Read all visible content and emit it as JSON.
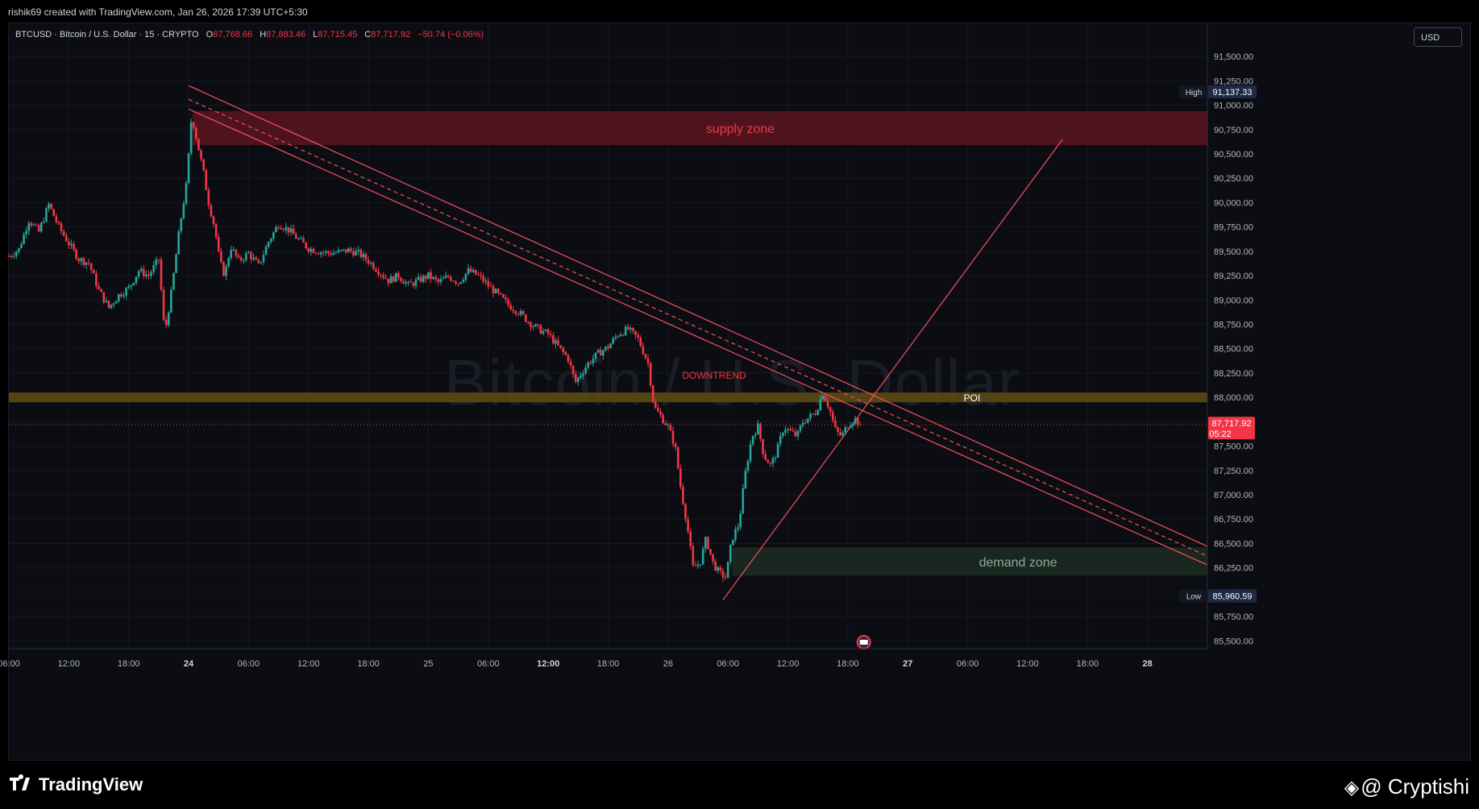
{
  "header": {
    "publish_line": "rishik69 created with TradingView.com, Jan 26, 2026 17:39 UTC+5:30"
  },
  "legend": {
    "symbol": "BTCUSD · Bitcoin / U.S. Dollar · 15 · CRYPTO",
    "open_label": "O",
    "open": "87,768.66",
    "high_label": "H",
    "high": "87,883.46",
    "low_label": "L",
    "low": "87,715.45",
    "close_label": "C",
    "close": "87,717.92",
    "change": "−50.74 (−0.06%)"
  },
  "currency": "USD",
  "watermark": "Bitcoin / U.S. Dollar",
  "footer": {
    "logo_text": "TradingView",
    "author": "@ Cryptishi"
  },
  "colors": {
    "up": "#26a69a",
    "down": "#f23645",
    "background": "#0b0d12",
    "supply_zone": "#5a1520",
    "demand_zone": "#1c2a22",
    "poi": "#5c4a14",
    "trendline": "#f7525f",
    "high_badge": "#2a2e39",
    "price_badge": "#f23645"
  },
  "chart_data": {
    "type": "candlestick",
    "symbol": "BTCUSD",
    "interval": "15",
    "y_axis": {
      "ticks": [
        85500,
        85750,
        86000,
        86250,
        86500,
        86750,
        87000,
        87250,
        87500,
        87750,
        88000,
        88250,
        88500,
        88750,
        89000,
        89250,
        89500,
        89750,
        90000,
        90250,
        90500,
        90750,
        91000,
        91250,
        91500
      ],
      "tick_labels": [
        "85,500.00",
        "85,750.00",
        "86,000.00",
        "86,250.00",
        "86,500.00",
        "86,750.00",
        "87,000.00",
        "87,250.00",
        "87,500.00",
        "87,750.00",
        "88,000.00",
        "88,250.00",
        "88,500.00",
        "88,750.00",
        "89,000.00",
        "89,250.00",
        "89,500.00",
        "89,750.00",
        "90,000.00",
        "90,250.00",
        "90,500.00",
        "90,750.00",
        "91,000.00",
        "91,250.00",
        "91,500.00"
      ],
      "range": [
        85420,
        91840
      ]
    },
    "x_axis": {
      "range": [
        0,
        120
      ],
      "ticks": [
        0,
        6,
        12,
        18,
        24,
        30,
        36,
        42,
        48,
        54,
        60,
        66,
        72,
        78,
        84,
        90,
        96,
        102,
        108,
        114
      ],
      "tick_labels": [
        "06:00",
        "12:00",
        "18:00",
        "24",
        "06:00",
        "12:00",
        "18:00",
        "25",
        "06:00",
        "12:00",
        "18:00",
        "26",
        "06:00",
        "12:00",
        "18:00",
        "27",
        "06:00",
        "12:00",
        "18:00",
        "28"
      ],
      "bold_ticks": [
        3,
        9,
        15,
        19
      ]
    },
    "price_path": [
      [
        0,
        89450
      ],
      [
        1,
        89520
      ],
      [
        2,
        89820
      ],
      [
        3,
        89700
      ],
      [
        4,
        89980
      ],
      [
        5,
        89750
      ],
      [
        6,
        89580
      ],
      [
        7,
        89420
      ],
      [
        8,
        89380
      ],
      [
        9,
        89100
      ],
      [
        10,
        88920
      ],
      [
        11,
        89050
      ],
      [
        12,
        89120
      ],
      [
        13,
        89300
      ],
      [
        14,
        89250
      ],
      [
        15,
        89420
      ],
      [
        15.6,
        88650
      ],
      [
        16.3,
        89100
      ],
      [
        17.1,
        89750
      ],
      [
        17.8,
        90200
      ],
      [
        18.3,
        90900
      ],
      [
        18.9,
        90600
      ],
      [
        19.5,
        90300
      ],
      [
        20,
        90000
      ],
      [
        20.6,
        89750
      ],
      [
        21.1,
        89400
      ],
      [
        21.6,
        89250
      ],
      [
        22.2,
        89550
      ],
      [
        23,
        89400
      ],
      [
        24,
        89480
      ],
      [
        25,
        89350
      ],
      [
        26,
        89600
      ],
      [
        27,
        89780
      ],
      [
        28,
        89720
      ],
      [
        29,
        89620
      ],
      [
        30,
        89530
      ],
      [
        31,
        89500
      ],
      [
        32,
        89480
      ],
      [
        33,
        89490
      ],
      [
        34,
        89510
      ],
      [
        35,
        89480
      ],
      [
        36,
        89400
      ],
      [
        37,
        89300
      ],
      [
        38,
        89200
      ],
      [
        39,
        89250
      ],
      [
        40,
        89150
      ],
      [
        41,
        89200
      ],
      [
        42,
        89250
      ],
      [
        43,
        89180
      ],
      [
        44,
        89240
      ],
      [
        45,
        89180
      ],
      [
        46,
        89300
      ],
      [
        47,
        89250
      ],
      [
        48,
        89150
      ],
      [
        49,
        89050
      ],
      [
        50,
        88950
      ],
      [
        51,
        88880
      ],
      [
        52,
        88780
      ],
      [
        53,
        88700
      ],
      [
        54,
        88650
      ],
      [
        55,
        88520
      ],
      [
        56,
        88400
      ],
      [
        56.7,
        88150
      ],
      [
        57.3,
        88250
      ],
      [
        58,
        88350
      ],
      [
        59,
        88450
      ],
      [
        60,
        88520
      ],
      [
        61,
        88650
      ],
      [
        62,
        88700
      ],
      [
        63,
        88600
      ],
      [
        64,
        88350
      ],
      [
        64.6,
        87900
      ],
      [
        65.3,
        87800
      ],
      [
        66,
        87700
      ],
      [
        66.7,
        87500
      ],
      [
        67.3,
        87050
      ],
      [
        67.9,
        86700
      ],
      [
        68.5,
        86250
      ],
      [
        69.2,
        86300
      ],
      [
        69.8,
        86550
      ],
      [
        70.5,
        86300
      ],
      [
        71.1,
        86200
      ],
      [
        71.8,
        86150
      ],
      [
        72.4,
        86550
      ],
      [
        73.1,
        86700
      ],
      [
        73.7,
        87200
      ],
      [
        74.4,
        87600
      ],
      [
        75,
        87700
      ],
      [
        75.6,
        87400
      ],
      [
        76.3,
        87300
      ],
      [
        76.9,
        87450
      ],
      [
        77.6,
        87700
      ],
      [
        78.2,
        87650
      ],
      [
        78.9,
        87600
      ],
      [
        79.5,
        87750
      ],
      [
        80.2,
        87800
      ],
      [
        80.8,
        87850
      ],
      [
        81.5,
        88050
      ],
      [
        82.1,
        87900
      ],
      [
        82.8,
        87650
      ],
      [
        83.4,
        87600
      ],
      [
        84,
        87720
      ],
      [
        84.7,
        87780
      ],
      [
        85.3,
        87717.92
      ]
    ],
    "high_price": "91,137.33",
    "low_price": "85,960.59",
    "high_label": "High",
    "low_label": "Low",
    "last_price": "87,717.92",
    "last_price_countdown": "05:22",
    "zones": [
      {
        "name": "supply zone",
        "from": 90590,
        "to": 90940,
        "x_start": 18.4
      },
      {
        "name": "demand zone",
        "from": 86170,
        "to": 86460,
        "x_start": 72.4
      }
    ],
    "poi": {
      "label": "POI",
      "from": 87950,
      "to": 88050
    },
    "annotations": [
      "DOWNTREND"
    ],
    "trendlines": [
      {
        "kind": "descending_channel_upper",
        "from": [
          18,
          91200
        ],
        "to": [
          120,
          86470
        ]
      },
      {
        "kind": "descending_channel_mid",
        "from": [
          18,
          91060
        ],
        "to": [
          120,
          86370
        ]
      },
      {
        "kind": "descending_channel_lower",
        "from": [
          18,
          90960
        ],
        "to": [
          120,
          86280
        ]
      },
      {
        "kind": "ascending_support",
        "from": [
          71.5,
          85920
        ],
        "to": [
          105.5,
          90650
        ]
      }
    ],
    "event_marker_x": 85.6
  }
}
